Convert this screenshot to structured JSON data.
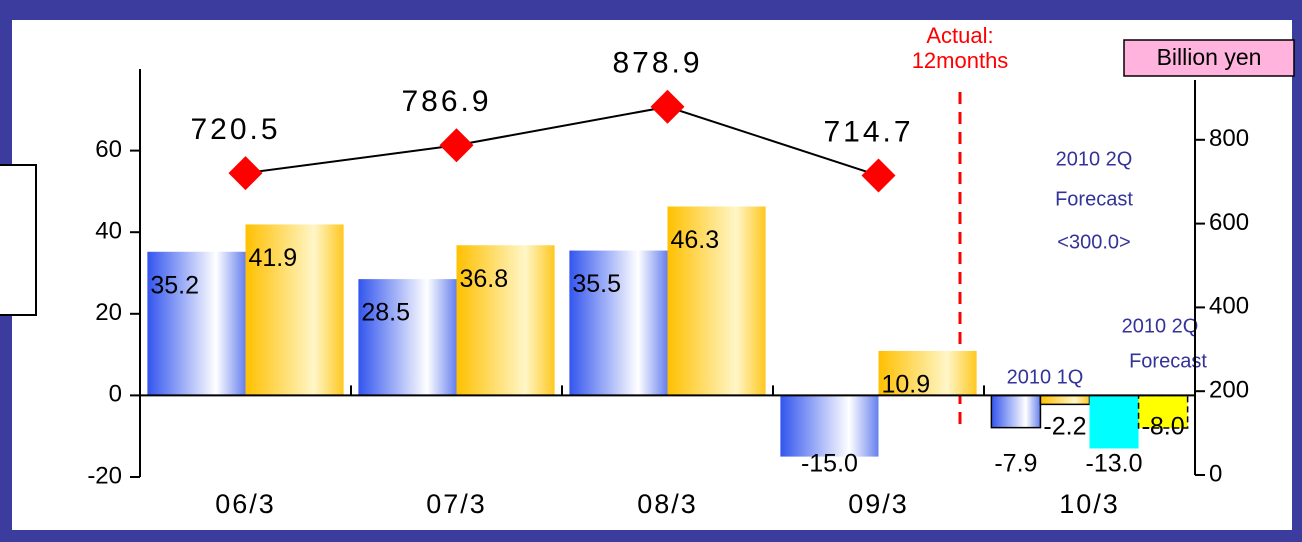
{
  "chart_data": {
    "type": "bar",
    "categories": [
      "06/3",
      "07/3",
      "08/3",
      "09/3",
      "10/3"
    ],
    "ylim": [
      -20,
      80
    ],
    "yticks": [
      -20,
      0,
      20,
      40,
      60
    ],
    "y2lim": [
      0,
      1000
    ],
    "y2ticks": [
      0,
      200,
      400,
      600,
      800
    ],
    "series": [
      {
        "color": "#3355ee",
        "values": [
          35.2,
          28.5,
          35.5,
          -15.0,
          -7.9
        ],
        "value_labels": [
          "35.2",
          "28.5",
          "35.5",
          "-15.0",
          "-7.9"
        ]
      },
      {
        "color": "#ffc000",
        "values": [
          41.9,
          36.8,
          46.3,
          10.9,
          -2.2
        ],
        "value_labels": [
          "41.9",
          "36.8",
          "46.3",
          "10.9",
          "-2.2"
        ]
      },
      {
        "color": "#00ffff",
        "values": [
          null,
          null,
          null,
          null,
          -13.0
        ],
        "value_labels": [
          null,
          null,
          null,
          null,
          "-13.0"
        ]
      },
      {
        "color": "#ffff00",
        "values": [
          null,
          null,
          null,
          null,
          -8.0
        ],
        "value_labels": [
          null,
          null,
          null,
          null,
          "-8.0"
        ]
      },
      {
        "type": "line",
        "axis": "y2",
        "color": "#000000",
        "marker_color": "#ff0000",
        "values": [
          720.5,
          786.9,
          878.9,
          714.7,
          null
        ]
      }
    ],
    "unit_label": "Billion yen",
    "annotations": [
      "Actual:",
      "12months",
      "2010 2Q",
      "Forecast",
      "<300.0>",
      "2010 2Q",
      "Forecast",
      "2010 1Q"
    ]
  }
}
